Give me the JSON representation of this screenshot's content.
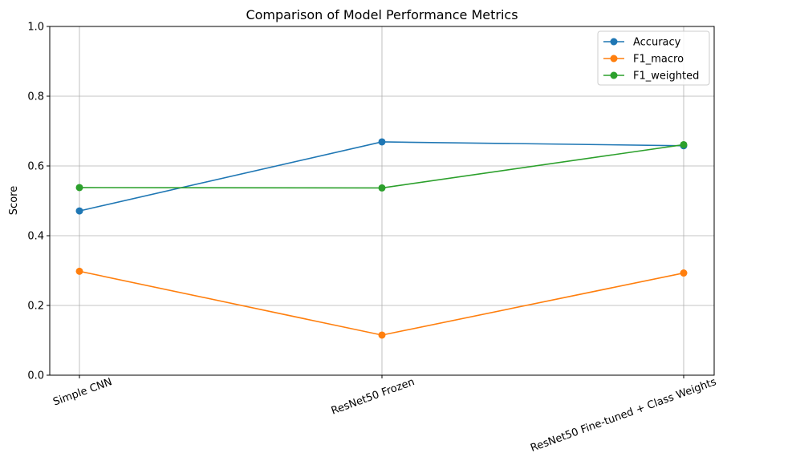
{
  "chart_data": {
    "type": "line",
    "title": "Comparison of Model Performance Metrics",
    "xlabel": "",
    "ylabel": "Score",
    "categories": [
      "Simple CNN",
      "ResNet50 Frozen",
      "ResNet50 Fine-tuned + Class Weights"
    ],
    "ylim": [
      0,
      1
    ],
    "yticks": [
      0.0,
      0.2,
      0.4,
      0.6,
      0.8,
      1.0
    ],
    "ytick_labels": [
      "0.0",
      "0.2",
      "0.4",
      "0.6",
      "0.8",
      "1.0"
    ],
    "grid": true,
    "legend_position": "top-right",
    "series": [
      {
        "name": "Accuracy",
        "color": "#1f77b4",
        "values": [
          0.471,
          0.669,
          0.658
        ]
      },
      {
        "name": "F1_macro",
        "color": "#ff7f0e",
        "values": [
          0.298,
          0.115,
          0.293
        ]
      },
      {
        "name": "F1_weighted",
        "color": "#2ca02c",
        "values": [
          0.538,
          0.537,
          0.661
        ]
      }
    ]
  }
}
